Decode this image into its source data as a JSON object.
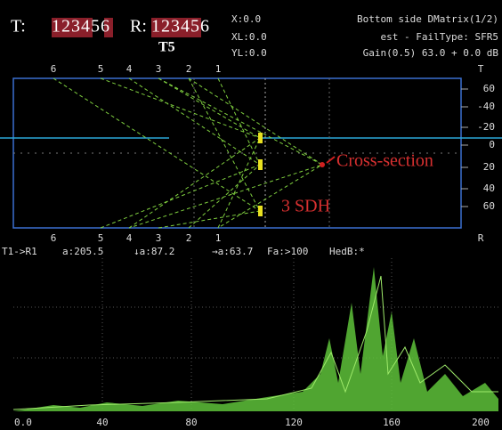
{
  "header": {
    "t_label": "T:",
    "t_value": "123456",
    "r_label": "R:",
    "r_value": "123456",
    "probe": "T5",
    "x": "X:0.0",
    "xl": "XL:0.0",
    "yl": "YL:0.0",
    "title": "Bottom side DMatrix(1/2)",
    "fail_type": "est - FailType: SFR5",
    "gain": "Gain(0.5) 63.0 + 0.0 dB"
  },
  "scan": {
    "top_labels": [
      "6",
      "5",
      "4",
      "3",
      "2",
      "1",
      "T"
    ],
    "bottom_labels": [
      "6",
      "5",
      "4",
      "3",
      "2",
      "1",
      "R"
    ],
    "depth_labels": [
      "60",
      "-40",
      "-20",
      "0",
      "20",
      "40",
      "60"
    ],
    "annotations": [
      "Cross-section",
      "3 SDH"
    ]
  },
  "status": [
    "T1->R1",
    "a:205.5",
    "↓a:87.2",
    "→a:63.7",
    "Fa:>100",
    "HedB:*"
  ],
  "ascan": {
    "x_labels": [
      "0.0",
      "40",
      "80",
      "120",
      "160",
      "200"
    ]
  }
}
